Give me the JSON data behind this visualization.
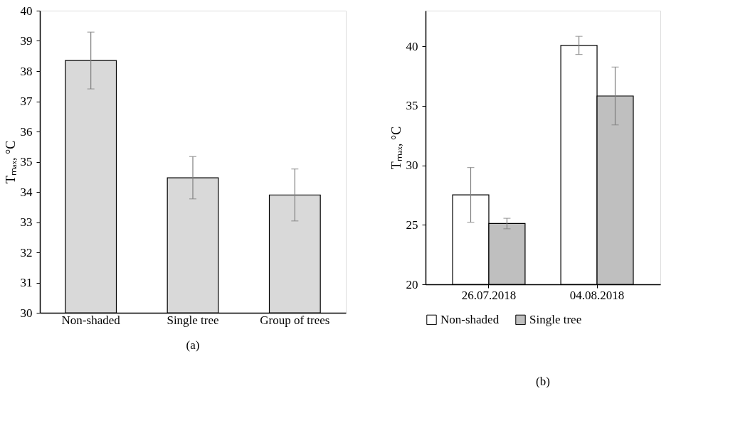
{
  "chart_data": [
    {
      "type": "bar",
      "ylabel": "Tₘₐₓ, °C",
      "categories": [
        "Non-shaded",
        "Single tree",
        "Group of trees"
      ],
      "values": [
        38.35,
        34.47,
        33.9
      ],
      "errors": [
        0.94,
        0.7,
        0.86
      ],
      "color": "#d9d9d9",
      "ylim": [
        30,
        40
      ],
      "yticks": [
        30,
        31,
        32,
        33,
        34,
        35,
        36,
        37,
        38,
        39,
        40
      ],
      "grid": false,
      "legend": false,
      "annotations": [
        "(a)"
      ]
    },
    {
      "type": "bar",
      "ylabel": "Tₘₐₓ, °C",
      "categories": [
        "26.07.2018",
        "04.08.2018"
      ],
      "series": [
        {
          "name": "Non-shaded",
          "color": "#ffffff",
          "values": [
            27.52,
            40.08
          ],
          "errors": [
            2.3,
            0.76
          ]
        },
        {
          "name": "Single tree",
          "color": "#bfbfbf",
          "values": [
            25.11,
            35.83
          ],
          "errors": [
            0.44,
            2.43
          ]
        }
      ],
      "ylim": [
        20,
        43
      ],
      "yticks": [
        20,
        25,
        30,
        35,
        40
      ],
      "grid": false,
      "legend": "bottom",
      "annotations": [
        "(b)"
      ]
    }
  ]
}
